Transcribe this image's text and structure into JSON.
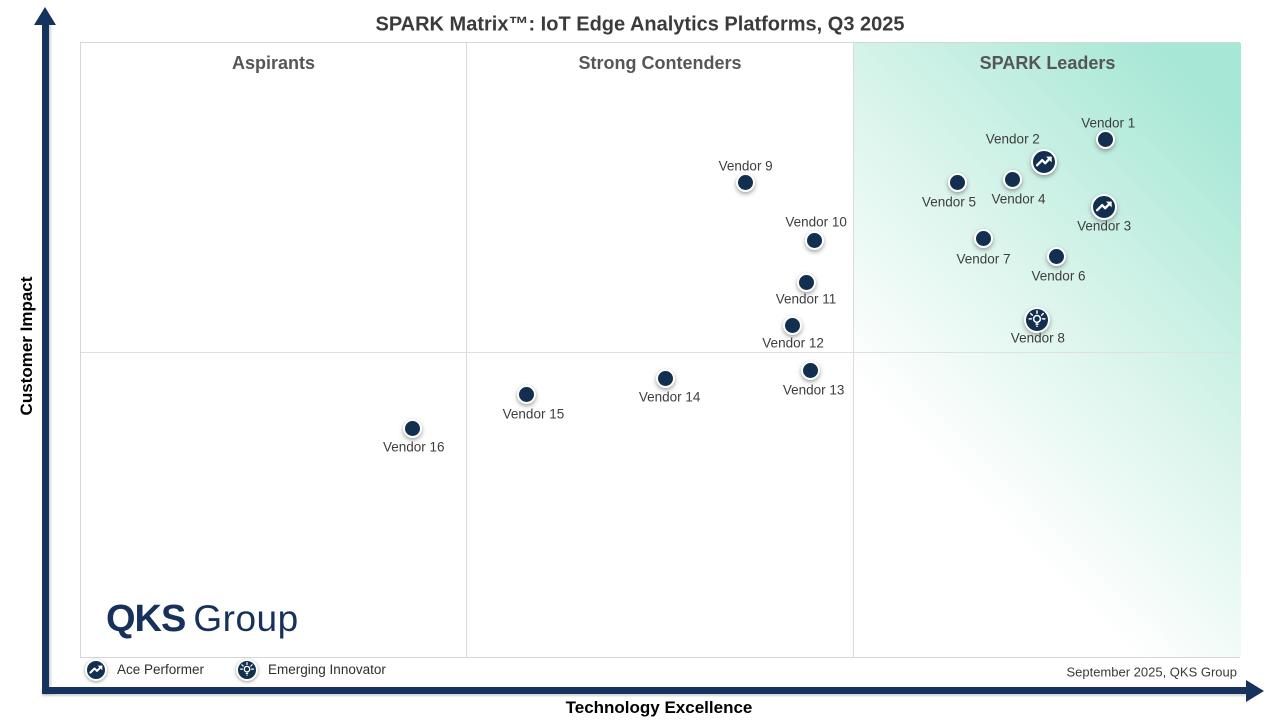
{
  "title": "SPARK Matrix™: IoT Edge Analytics Platforms, Q3 2025",
  "axes": {
    "x_label": "Technology Excellence",
    "y_label": "Customer Impact"
  },
  "quadrants": {
    "left": "Aspirants",
    "middle": "Strong Contenders",
    "right": "SPARK Leaders"
  },
  "legend": {
    "items": [
      {
        "icon": "ace",
        "label": "Ace Performer"
      },
      {
        "icon": "innovator",
        "label": "Emerging Innovator"
      }
    ]
  },
  "footnote": "September 2025, QKS Group",
  "logo": {
    "bold": "QKS",
    "light": "Group"
  },
  "colors": {
    "axis_navy": "#16335e",
    "dot_navy": "#132f4f",
    "leaders_gradient_end": "#a6e7d5",
    "divider_gray": "#dadada",
    "header_gray": "#565656"
  },
  "chart_data": {
    "type": "scatter",
    "title": "SPARK Matrix™: IoT Edge Analytics Platforms, Q3 2025",
    "xlabel": "Technology Excellence",
    "ylabel": "Customer Impact",
    "x_range": [
      0,
      100
    ],
    "y_range": [
      0,
      100
    ],
    "grid": "quadrant-matrix",
    "legend_position": "bottom-left",
    "marker_types": {
      "dot": "vendor",
      "ace": "Ace Performer",
      "innovator": "Emerging Innovator"
    },
    "series": [
      {
        "name": "Vendor 1",
        "tech": 88.3,
        "impact": 84.3,
        "marker": "dot",
        "label_dx": 3,
        "label_dy": -17
      },
      {
        "name": "Vendor 2",
        "tech": 83.0,
        "impact": 80.7,
        "marker": "ace",
        "label_dx": -31,
        "label_dy": -23
      },
      {
        "name": "Vendor 3",
        "tech": 88.2,
        "impact": 73.4,
        "marker": "ace",
        "label_dx": 0,
        "label_dy": 19
      },
      {
        "name": "Vendor 4",
        "tech": 80.3,
        "impact": 77.8,
        "marker": "dot",
        "label_dx": 6,
        "label_dy": 19
      },
      {
        "name": "Vendor 5",
        "tech": 75.6,
        "impact": 77.4,
        "marker": "dot",
        "label_dx": -9,
        "label_dy": 20
      },
      {
        "name": "Vendor 6",
        "tech": 84.1,
        "impact": 65.3,
        "marker": "dot",
        "label_dx": 2,
        "label_dy": 19
      },
      {
        "name": "Vendor 7",
        "tech": 77.8,
        "impact": 68.2,
        "marker": "dot",
        "label_dx": 0,
        "label_dy": 20
      },
      {
        "name": "Vendor 8",
        "tech": 82.4,
        "impact": 55.0,
        "marker": "innovator",
        "label_dx": 1,
        "label_dy": 18
      },
      {
        "name": "Vendor 9",
        "tech": 57.3,
        "impact": 77.3,
        "marker": "dot",
        "label_dx": 0,
        "label_dy": -17
      },
      {
        "name": "Vendor 10",
        "tech": 63.2,
        "impact": 68.0,
        "marker": "dot",
        "label_dx": 2,
        "label_dy": -18
      },
      {
        "name": "Vendor 11",
        "tech": 62.5,
        "impact": 61.2,
        "marker": "dot",
        "label_dx": 0,
        "label_dy": 17
      },
      {
        "name": "Vendor 12",
        "tech": 61.3,
        "impact": 54.1,
        "marker": "dot",
        "label_dx": 1,
        "label_dy": 17
      },
      {
        "name": "Vendor 13",
        "tech": 62.9,
        "impact": 46.8,
        "marker": "dot",
        "label_dx": 3,
        "label_dy": 19
      },
      {
        "name": "Vendor 14",
        "tech": 50.4,
        "impact": 45.6,
        "marker": "dot",
        "label_dx": 4,
        "label_dy": 19
      },
      {
        "name": "Vendor 15",
        "tech": 38.4,
        "impact": 43.0,
        "marker": "dot",
        "label_dx": 7,
        "label_dy": 20
      },
      {
        "name": "Vendor 16",
        "tech": 28.6,
        "impact": 37.5,
        "marker": "dot",
        "label_dx": 1,
        "label_dy": 19
      }
    ]
  }
}
